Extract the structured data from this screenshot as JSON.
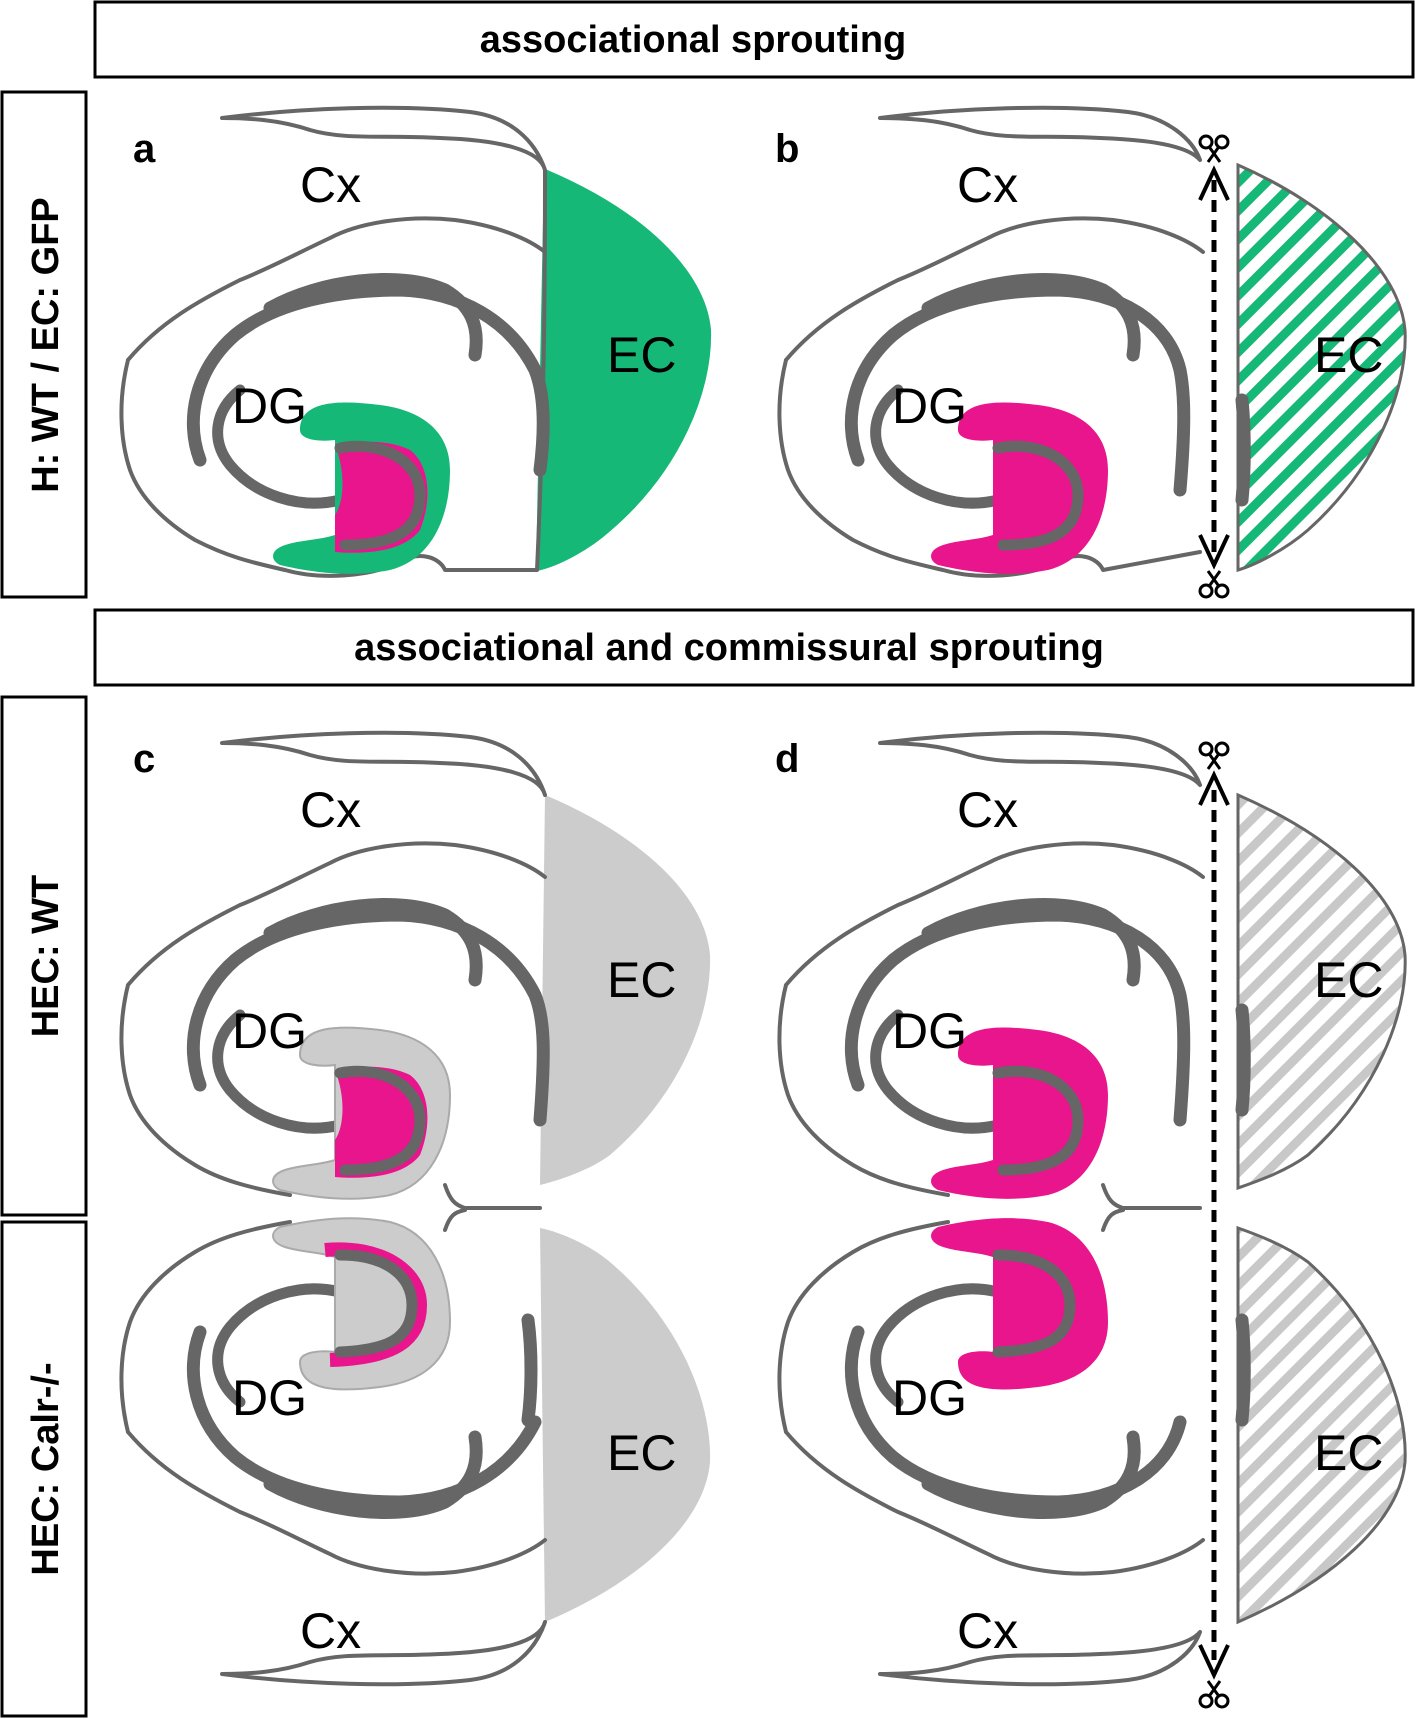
{
  "banners": {
    "top": "associational sprouting",
    "middle": "associational and commissural sprouting"
  },
  "row_labels": {
    "row1": "H: WT / EC: GFP",
    "row2": "HEC: WT",
    "row3": "HEC: Calr-/-"
  },
  "panels": {
    "a": {
      "letter": "a",
      "cortex": "Cx",
      "ec": "EC",
      "dg": "DG"
    },
    "b": {
      "letter": "b",
      "cortex": "Cx",
      "ec": "EC",
      "dg": "DG"
    },
    "c": {
      "letter": "c",
      "cortex_top": "Cx",
      "ec_top": "EC",
      "dg_top": "DG",
      "dg_bottom": "DG",
      "ec_bottom": "EC",
      "cortex_bottom": "Cx"
    },
    "d": {
      "letter": "d",
      "cortex_top": "Cx",
      "ec_top": "EC",
      "dg_top": "DG",
      "dg_bottom": "DG",
      "ec_bottom": "EC",
      "cortex_bottom": "Cx"
    }
  },
  "colors": {
    "gfp_green": "#16b877",
    "dentate_magenta": "#e8158c",
    "wt_gray": "#cccccc",
    "outline_gray": "#666666"
  },
  "icons": [
    "scissors-icon",
    "double-arrow-icon"
  ]
}
